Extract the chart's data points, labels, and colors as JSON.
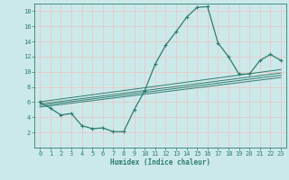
{
  "xlabel": "Humidex (Indice chaleur)",
  "ylabel": "",
  "bg_color": "#cce9ea",
  "line_color": "#2e7d6e",
  "grid_color": "#e8c8c8",
  "x_data": [
    0,
    1,
    2,
    3,
    4,
    5,
    6,
    7,
    8,
    9,
    10,
    11,
    12,
    13,
    14,
    15,
    16,
    17,
    18,
    19,
    20,
    21,
    22,
    23
  ],
  "y_data": [
    6.0,
    5.2,
    4.3,
    4.5,
    2.9,
    2.5,
    2.6,
    2.1,
    2.1,
    5.0,
    7.5,
    11.0,
    13.5,
    15.3,
    17.2,
    18.5,
    18.6,
    13.8,
    12.0,
    9.7,
    9.7,
    11.5,
    12.3,
    11.5
  ],
  "ylim": [
    0,
    19
  ],
  "xlim": [
    -0.5,
    23.5
  ],
  "yticks": [
    2,
    4,
    6,
    8,
    10,
    12,
    14,
    16,
    18
  ],
  "xticks": [
    0,
    1,
    2,
    3,
    4,
    5,
    6,
    7,
    8,
    9,
    10,
    11,
    12,
    13,
    14,
    15,
    16,
    17,
    18,
    19,
    20,
    21,
    22,
    23
  ],
  "reg_lines": [
    {
      "x0": 0,
      "y0": 6.05,
      "x1": 23,
      "y1": 10.3
    },
    {
      "x0": 0,
      "y0": 5.75,
      "x1": 23,
      "y1": 9.85
    },
    {
      "x0": 0,
      "y0": 5.55,
      "x1": 23,
      "y1": 9.55
    },
    {
      "x0": 0,
      "y0": 5.35,
      "x1": 23,
      "y1": 9.25
    }
  ]
}
